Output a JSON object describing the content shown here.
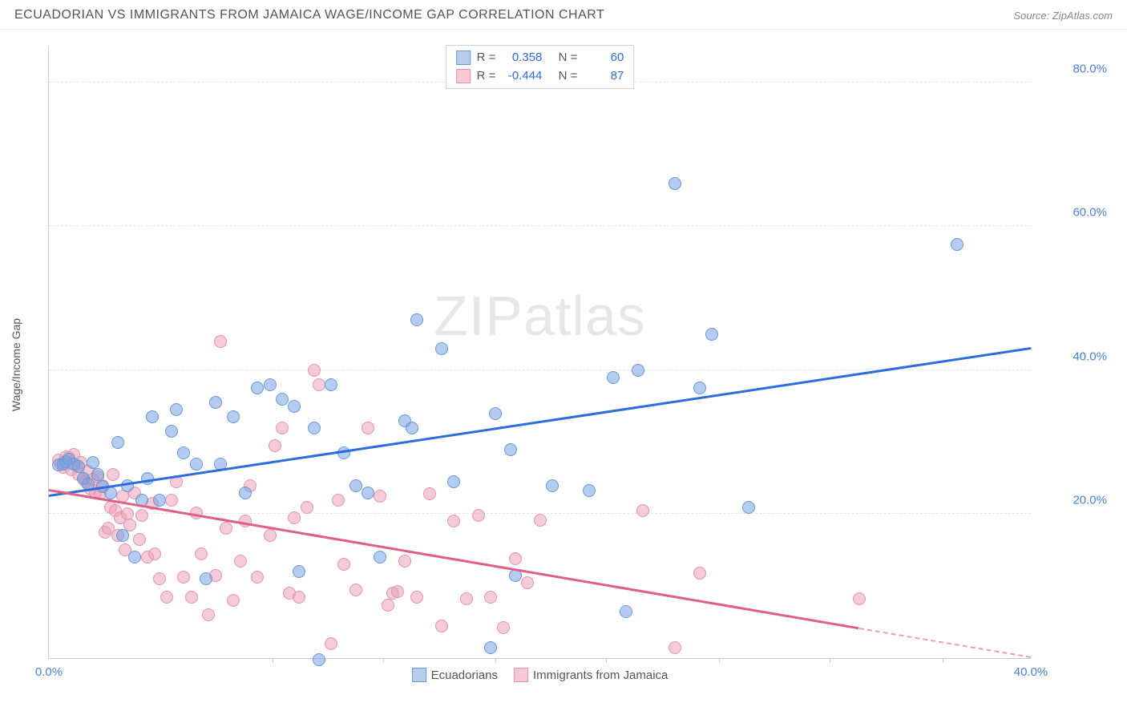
{
  "title": "ECUADORIAN VS IMMIGRANTS FROM JAMAICA WAGE/INCOME GAP CORRELATION CHART",
  "source": "Source: ZipAtlas.com",
  "y_axis_label": "Wage/Income Gap",
  "watermark_a": "ZIP",
  "watermark_b": "atlas",
  "chart": {
    "type": "scatter",
    "background_color": "#ffffff",
    "grid_color": "#e5e5e5",
    "axis_color": "#cccccc",
    "tick_label_color": "#4a7fd4",
    "tick_fontsize": 15,
    "xlim": [
      0,
      40
    ],
    "ylim": [
      0,
      85
    ],
    "y_ticks": [
      20,
      40,
      60,
      80
    ],
    "y_tick_labels": [
      "20.0%",
      "40.0%",
      "60.0%",
      "80.0%"
    ],
    "x_ticks": [
      0,
      40
    ],
    "x_tick_labels": [
      "0.0%",
      "40.0%"
    ],
    "x_minor_ticks": [
      9.1,
      13.6,
      18.2,
      22.7,
      27.3,
      31.8,
      36.4
    ],
    "marker_radius": 8,
    "marker_border": 1.5,
    "series": [
      {
        "name": "Ecuadorians",
        "color_fill": "rgba(120,160,225,0.55)",
        "color_stroke": "#6a98d8",
        "swatch_fill": "#b7cdef",
        "swatch_border": "#6a98d8",
        "stats": {
          "R_label": "R =",
          "R": "0.358",
          "N_label": "N =",
          "N": "60"
        },
        "trend": {
          "x1": 0,
          "y1": 22.5,
          "x2": 40,
          "y2": 43,
          "color": "#2d6cdf",
          "width": 2.5
        },
        "points": [
          [
            0.4,
            26.8
          ],
          [
            0.6,
            27
          ],
          [
            0.7,
            27.3
          ],
          [
            0.8,
            27.6
          ],
          [
            1,
            27
          ],
          [
            1.2,
            26.6
          ],
          [
            1.4,
            25
          ],
          [
            1.6,
            24.2
          ],
          [
            1.8,
            27.2
          ],
          [
            2,
            25.5
          ],
          [
            2.2,
            23.8
          ],
          [
            2.5,
            23
          ],
          [
            2.8,
            30
          ],
          [
            3,
            17
          ],
          [
            3.2,
            24
          ],
          [
            3.5,
            14
          ],
          [
            3.8,
            22
          ],
          [
            4,
            25
          ],
          [
            4.2,
            33.5
          ],
          [
            4.5,
            22
          ],
          [
            5,
            31.5
          ],
          [
            5.2,
            34.5
          ],
          [
            5.5,
            28.5
          ],
          [
            6,
            27
          ],
          [
            6.4,
            11
          ],
          [
            6.8,
            35.5
          ],
          [
            7,
            27
          ],
          [
            7.5,
            33.5
          ],
          [
            8,
            23
          ],
          [
            8.5,
            37.5
          ],
          [
            9,
            38
          ],
          [
            9.5,
            36
          ],
          [
            10,
            35
          ],
          [
            10.2,
            12
          ],
          [
            10.8,
            32
          ],
          [
            11,
            -0.2
          ],
          [
            11.5,
            38
          ],
          [
            12,
            28.5
          ],
          [
            12.5,
            24
          ],
          [
            13,
            23
          ],
          [
            13.5,
            14
          ],
          [
            14.5,
            33
          ],
          [
            14.8,
            32
          ],
          [
            15,
            47
          ],
          [
            16,
            43
          ],
          [
            16.5,
            24.5
          ],
          [
            18,
            1.5
          ],
          [
            18.2,
            34
          ],
          [
            18.8,
            29
          ],
          [
            19,
            11.5
          ],
          [
            20.5,
            24
          ],
          [
            22,
            23.3
          ],
          [
            23,
            39
          ],
          [
            23.5,
            6.5
          ],
          [
            24,
            40
          ],
          [
            25.5,
            66
          ],
          [
            26.5,
            37.5
          ],
          [
            27,
            45
          ],
          [
            28.5,
            21
          ],
          [
            37,
            57.5
          ]
        ]
      },
      {
        "name": "Immigrants from Jamaica",
        "color_fill": "rgba(235,160,180,0.55)",
        "color_stroke": "#e394ac",
        "swatch_fill": "#f6c9d5",
        "swatch_border": "#e394ac",
        "stats": {
          "R_label": "R =",
          "R": "-0.444",
          "N_label": "N =",
          "N": "87"
        },
        "trend": {
          "x1": 0,
          "y1": 23.2,
          "x2": 33,
          "y2": 4,
          "color": "#e15f85",
          "width": 2.5,
          "dash_after_x": 33,
          "dash_to_x": 40,
          "dash_to_y": 0
        },
        "points": [
          [
            0.4,
            27.5
          ],
          [
            0.5,
            27
          ],
          [
            0.6,
            26.5
          ],
          [
            0.7,
            28
          ],
          [
            0.8,
            27.8
          ],
          [
            0.9,
            26.2
          ],
          [
            1,
            28.3
          ],
          [
            1.1,
            26.8
          ],
          [
            1.2,
            25.5
          ],
          [
            1.3,
            27.2
          ],
          [
            1.4,
            25
          ],
          [
            1.5,
            24.5
          ],
          [
            1.6,
            26
          ],
          [
            1.7,
            23.5
          ],
          [
            1.8,
            24.8
          ],
          [
            1.9,
            23
          ],
          [
            2,
            25.2
          ],
          [
            2.1,
            22.8
          ],
          [
            2.2,
            24
          ],
          [
            2.3,
            17.5
          ],
          [
            2.4,
            18
          ],
          [
            2.5,
            21
          ],
          [
            2.6,
            25.5
          ],
          [
            2.7,
            20.5
          ],
          [
            2.8,
            17
          ],
          [
            2.9,
            19.5
          ],
          [
            3,
            22.5
          ],
          [
            3.1,
            15
          ],
          [
            3.2,
            20
          ],
          [
            3.3,
            18.5
          ],
          [
            3.5,
            23
          ],
          [
            3.7,
            16.5
          ],
          [
            3.8,
            19.8
          ],
          [
            4,
            14
          ],
          [
            4.2,
            21.5
          ],
          [
            4.3,
            14.5
          ],
          [
            4.5,
            11
          ],
          [
            4.8,
            8.5
          ],
          [
            5,
            22
          ],
          [
            5.2,
            24.5
          ],
          [
            5.5,
            11.2
          ],
          [
            5.8,
            8.5
          ],
          [
            6,
            20.2
          ],
          [
            6.2,
            14.5
          ],
          [
            6.5,
            6
          ],
          [
            6.8,
            11.5
          ],
          [
            7,
            44
          ],
          [
            7.2,
            18
          ],
          [
            7.5,
            8
          ],
          [
            7.8,
            13.5
          ],
          [
            8,
            19
          ],
          [
            8.2,
            24
          ],
          [
            8.5,
            11.3
          ],
          [
            9,
            17
          ],
          [
            9.2,
            29.5
          ],
          [
            9.5,
            32
          ],
          [
            9.8,
            9
          ],
          [
            10,
            19.5
          ],
          [
            10.2,
            8.5
          ],
          [
            10.5,
            21
          ],
          [
            10.8,
            40
          ],
          [
            11,
            38
          ],
          [
            11.5,
            2
          ],
          [
            11.8,
            22
          ],
          [
            12,
            13
          ],
          [
            12.5,
            9.5
          ],
          [
            13,
            32
          ],
          [
            13.5,
            22.5
          ],
          [
            13.8,
            7.3
          ],
          [
            14,
            9
          ],
          [
            14.2,
            9.3
          ],
          [
            14.5,
            13.5
          ],
          [
            15,
            8.5
          ],
          [
            15.5,
            22.8
          ],
          [
            16,
            4.5
          ],
          [
            16.5,
            19
          ],
          [
            17,
            8.2
          ],
          [
            17.5,
            19.8
          ],
          [
            18,
            8.5
          ],
          [
            18.5,
            4.2
          ],
          [
            19,
            13.8
          ],
          [
            19.5,
            10.5
          ],
          [
            20,
            19.2
          ],
          [
            24.2,
            20.5
          ],
          [
            25.5,
            1.5
          ],
          [
            26.5,
            11.8
          ],
          [
            33,
            8.3
          ]
        ]
      }
    ]
  },
  "legend": {
    "items": [
      {
        "label": "Ecuadorians"
      },
      {
        "label": "Immigrants from Jamaica"
      }
    ]
  }
}
